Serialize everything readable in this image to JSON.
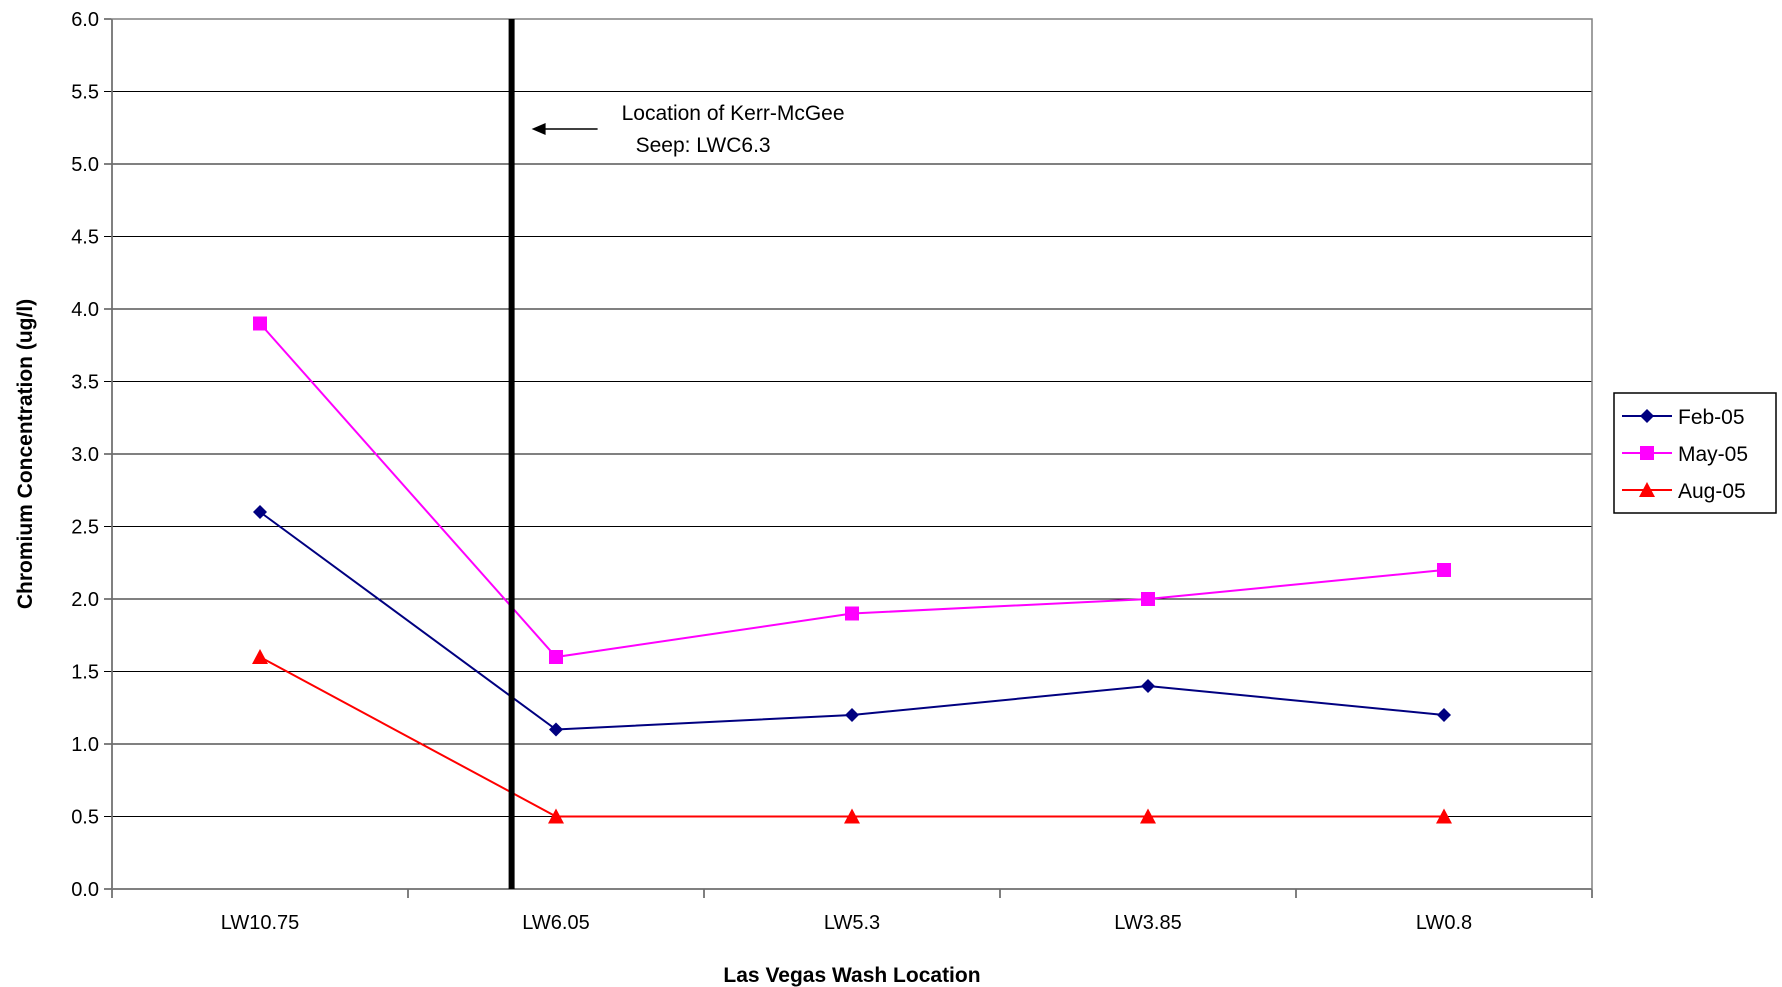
{
  "chart_data": {
    "type": "line",
    "title": "",
    "xlabel": "Las Vegas Wash Location",
    "ylabel": "Chromium Concentration (ug/l)",
    "categories": [
      "LW10.75",
      "LW6.05",
      "LW5.3",
      "LW3.85",
      "LW0.8"
    ],
    "ylim": [
      0,
      6
    ],
    "ytick_step": 0.5,
    "ytick_labels": [
      "0.0",
      "0.5",
      "1.0",
      "1.5",
      "2.0",
      "2.5",
      "3.0",
      "3.5",
      "4.0",
      "4.5",
      "5.0",
      "5.5",
      "6.0"
    ],
    "grid": "horizontal",
    "legend_position": "right",
    "series": [
      {
        "name": "Feb-05",
        "color": "#000080",
        "marker": "diamond",
        "values": [
          2.6,
          1.1,
          1.2,
          1.4,
          1.2
        ]
      },
      {
        "name": "May-05",
        "color": "#ff00ff",
        "marker": "square",
        "values": [
          3.9,
          1.6,
          1.9,
          2.0,
          2.2
        ]
      },
      {
        "name": "Aug-05",
        "color": "#ff0000",
        "marker": "triangle",
        "values": [
          1.6,
          0.5,
          0.5,
          0.5,
          0.5
        ]
      }
    ],
    "annotation": {
      "lines": [
        "Location of Kerr-McGee",
        "Seep: LWC6.3"
      ],
      "marker_x_category": 0.85
    }
  }
}
